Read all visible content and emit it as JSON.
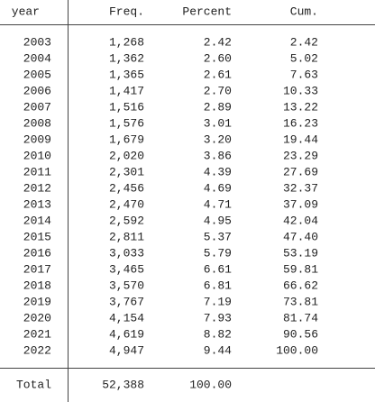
{
  "table": {
    "header": [
      "year",
      "Freq.",
      "Percent",
      "Cum."
    ],
    "rows": [
      [
        "2003",
        "1,268",
        "2.42",
        "2.42"
      ],
      [
        "2004",
        "1,362",
        "2.60",
        "5.02"
      ],
      [
        "2005",
        "1,365",
        "2.61",
        "7.63"
      ],
      [
        "2006",
        "1,417",
        "2.70",
        "10.33"
      ],
      [
        "2007",
        "1,516",
        "2.89",
        "13.22"
      ],
      [
        "2008",
        "1,576",
        "3.01",
        "16.23"
      ],
      [
        "2009",
        "1,679",
        "3.20",
        "19.44"
      ],
      [
        "2010",
        "2,020",
        "3.86",
        "23.29"
      ],
      [
        "2011",
        "2,301",
        "4.39",
        "27.69"
      ],
      [
        "2012",
        "2,456",
        "4.69",
        "32.37"
      ],
      [
        "2013",
        "2,470",
        "4.71",
        "37.09"
      ],
      [
        "2014",
        "2,592",
        "4.95",
        "42.04"
      ],
      [
        "2015",
        "2,811",
        "5.37",
        "47.40"
      ],
      [
        "2016",
        "3,033",
        "5.79",
        "53.19"
      ],
      [
        "2017",
        "3,465",
        "6.61",
        "59.81"
      ],
      [
        "2018",
        "3,570",
        "6.81",
        "66.62"
      ],
      [
        "2019",
        "3,767",
        "7.19",
        "73.81"
      ],
      [
        "2020",
        "4,154",
        "7.93",
        "81.74"
      ],
      [
        "2021",
        "4,619",
        "8.82",
        "90.56"
      ],
      [
        "2022",
        "4,947",
        "9.44",
        "100.00"
      ]
    ],
    "total": [
      "Total",
      "52,388",
      "100.00"
    ]
  }
}
